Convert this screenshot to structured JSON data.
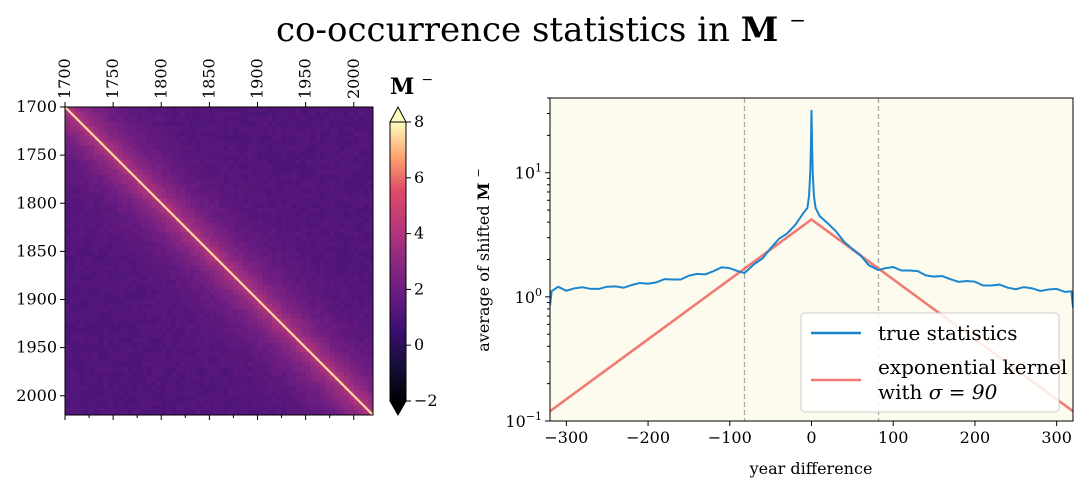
{
  "figure": {
    "title": "co-occurrence statistics in",
    "title_symbol": "M",
    "title_sup": "−"
  },
  "chart_data": [
    {
      "type": "heatmap",
      "title": "",
      "x_ticks": [
        "1700",
        "1750",
        "1800",
        "1850",
        "1900",
        "1950",
        "2000"
      ],
      "y_ticks": [
        "1700",
        "1750",
        "1800",
        "1850",
        "1900",
        "1950",
        "2000"
      ],
      "x_range": [
        1700,
        2020
      ],
      "y_range": [
        1700,
        2020
      ],
      "colormap": "magma",
      "colorbar": {
        "label_symbol": "M",
        "label_sup": "−",
        "range": [
          -2,
          8
        ],
        "ticks": [
          {
            "value": -2,
            "label": "−2"
          },
          {
            "value": 0,
            "label": "0"
          },
          {
            "value": 2,
            "label": "2"
          },
          {
            "value": 4,
            "label": "4"
          },
          {
            "value": 6,
            "label": "6"
          },
          {
            "value": 8,
            "label": "8"
          }
        ],
        "extend": "both"
      },
      "model": {
        "diagonal_value": 8,
        "near_diag_peak": 4.2,
        "sigma": 90,
        "background": 1.2
      }
    },
    {
      "type": "line",
      "xlabel": "year difference",
      "ylabel": "average of shifted",
      "ylabel_symbol": "M",
      "ylabel_sup": "−",
      "yscale": "log",
      "xlim": [
        -320,
        320
      ],
      "ylim": [
        0.1,
        40
      ],
      "x_ticks": [
        {
          "value": -300,
          "label": "−300"
        },
        {
          "value": -200,
          "label": "−200"
        },
        {
          "value": -100,
          "label": "−100"
        },
        {
          "value": 0,
          "label": "0"
        },
        {
          "value": 100,
          "label": "100"
        },
        {
          "value": 200,
          "label": "200"
        },
        {
          "value": 300,
          "label": "300"
        }
      ],
      "y_ticks": [
        {
          "value": 0.1,
          "base": "10",
          "exp": "−1"
        },
        {
          "value": 1,
          "base": "10",
          "exp": "0"
        },
        {
          "value": 10,
          "base": "10",
          "exp": "1"
        }
      ],
      "vlines": [
        -82,
        82
      ],
      "background": "#fdfbee",
      "legend": {
        "position": "lower right",
        "entries": [
          {
            "label": "true statistics",
            "color": "#1a86cf"
          },
          {
            "label_line1": "exponential kernel",
            "label_line2_prefix": "with",
            "label_line2_math": "σ = 90",
            "color": "#f07b72"
          }
        ]
      },
      "series": [
        {
          "name": "true statistics",
          "color": "#1a86cf",
          "points": [
            [
              -320,
              0.85
            ],
            [
              -318,
              1.12
            ],
            [
              -310,
              1.18
            ],
            [
              -300,
              1.15
            ],
            [
              -290,
              1.18
            ],
            [
              -280,
              1.16
            ],
            [
              -270,
              1.17
            ],
            [
              -260,
              1.19
            ],
            [
              -250,
              1.18
            ],
            [
              -240,
              1.2
            ],
            [
              -230,
              1.22
            ],
            [
              -220,
              1.24
            ],
            [
              -210,
              1.26
            ],
            [
              -200,
              1.3
            ],
            [
              -190,
              1.33
            ],
            [
              -180,
              1.35
            ],
            [
              -170,
              1.38
            ],
            [
              -160,
              1.42
            ],
            [
              -150,
              1.46
            ],
            [
              -140,
              1.5
            ],
            [
              -130,
              1.56
            ],
            [
              -120,
              1.62
            ],
            [
              -110,
              1.68
            ],
            [
              -100,
              1.72
            ],
            [
              -90,
              1.65
            ],
            [
              -82,
              1.6
            ],
            [
              -70,
              1.82
            ],
            [
              -60,
              2.1
            ],
            [
              -50,
              2.45
            ],
            [
              -40,
              2.85
            ],
            [
              -30,
              3.3
            ],
            [
              -20,
              3.85
            ],
            [
              -10,
              4.6
            ],
            [
              -5,
              5.2
            ],
            [
              -3,
              6.5
            ],
            [
              -1.5,
              10
            ],
            [
              -0.6,
              18
            ],
            [
              0,
              32
            ],
            [
              0.6,
              18
            ],
            [
              1.5,
              10
            ],
            [
              3,
              6.5
            ],
            [
              5,
              5.2
            ],
            [
              10,
              4.6
            ],
            [
              20,
              3.85
            ],
            [
              30,
              3.3
            ],
            [
              40,
              2.85
            ],
            [
              50,
              2.45
            ],
            [
              60,
              2.1
            ],
            [
              70,
              1.82
            ],
            [
              82,
              1.6
            ],
            [
              90,
              1.66
            ],
            [
              100,
              1.72
            ],
            [
              110,
              1.68
            ],
            [
              120,
              1.62
            ],
            [
              130,
              1.57
            ],
            [
              140,
              1.52
            ],
            [
              150,
              1.48
            ],
            [
              160,
              1.43
            ],
            [
              170,
              1.39
            ],
            [
              180,
              1.36
            ],
            [
              190,
              1.32
            ],
            [
              200,
              1.3
            ],
            [
              210,
              1.27
            ],
            [
              220,
              1.24
            ],
            [
              230,
              1.22
            ],
            [
              240,
              1.2
            ],
            [
              250,
              1.18
            ],
            [
              260,
              1.17
            ],
            [
              270,
              1.16
            ],
            [
              280,
              1.15
            ],
            [
              290,
              1.14
            ],
            [
              300,
              1.13
            ],
            [
              310,
              1.12
            ],
            [
              318,
              1.1
            ],
            [
              320,
              0.82
            ]
          ]
        },
        {
          "name": "exponential kernel with σ = 90",
          "color": "#f07b72",
          "function": "exp",
          "peak": 4.2,
          "sigma": 90
        }
      ]
    }
  ]
}
